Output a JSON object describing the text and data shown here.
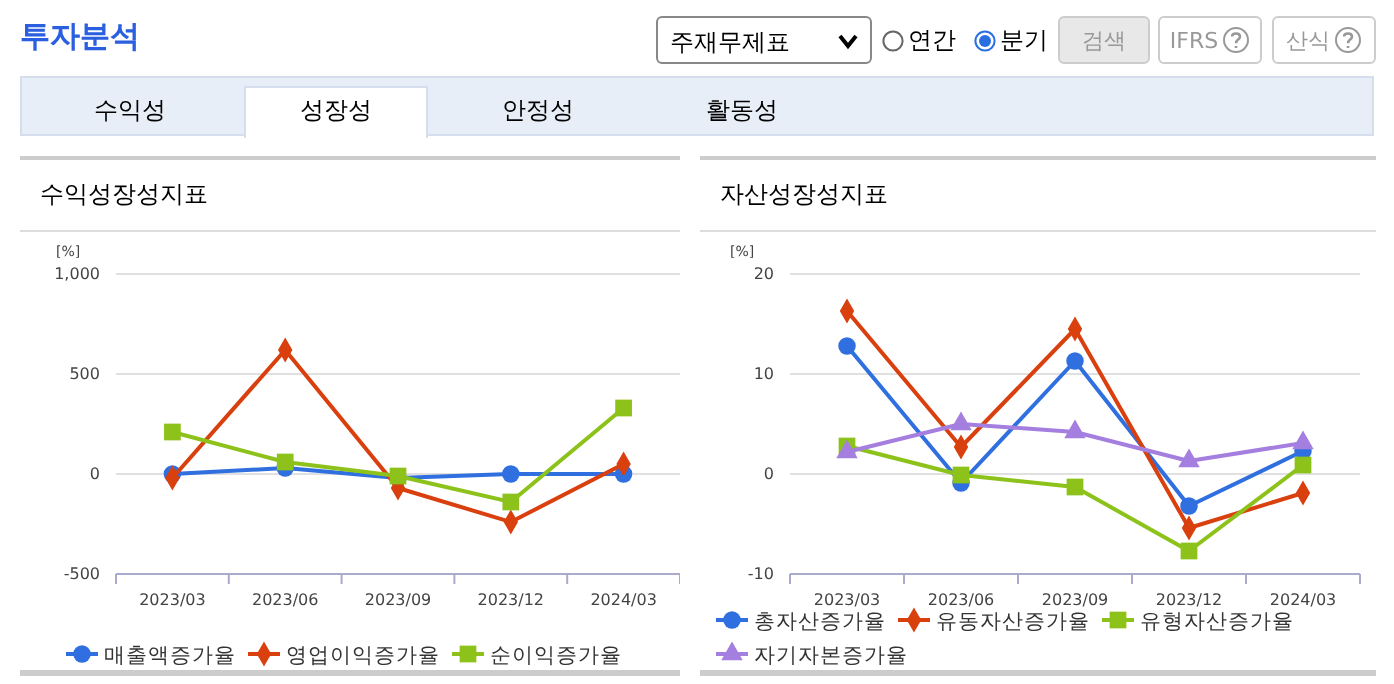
{
  "chart_data": [
    {
      "type": "other",
      "title": "투자분석",
      "annotations": [
        "주재무제표",
        "연간",
        "분기",
        "검색",
        "IFRS",
        "산식",
        "수익성",
        "성장성",
        "안정성",
        "활동성"
      ]
    },
    {
      "type": "line",
      "title": "수익성장성지표",
      "ylabel": "[%]",
      "categories": [
        "2023/03",
        "2023/06",
        "2023/09",
        "2023/12",
        "2024/03"
      ],
      "ylim": [
        -500,
        1000
      ],
      "yticks": [
        {
          "value": -500,
          "label": "-500"
        },
        0,
        500,
        {
          "value": 1000,
          "label": "1,000"
        }
      ],
      "grid": "y",
      "legend": "bottom",
      "series": [
        {
          "name": "매출액증가율",
          "color": "#2f6fdf",
          "marker": "circle",
          "values": [
            0,
            30,
            -20,
            0,
            0
          ]
        },
        {
          "name": "영업이익증가율",
          "color": "#d9400e",
          "marker": "diamond",
          "values": [
            -20,
            620,
            -70,
            -240,
            50
          ]
        },
        {
          "name": "순이익증가율",
          "color": "#8cc21a",
          "marker": "square",
          "values": [
            210,
            60,
            -10,
            -140,
            330
          ]
        }
      ]
    },
    {
      "type": "line",
      "title": "자산성장성지표",
      "ylabel": "[%]",
      "categories": [
        "2023/03",
        "2023/06",
        "2023/09",
        "2023/12",
        "2024/03"
      ],
      "ylim": [
        -10,
        20
      ],
      "yticks": [
        -10,
        0,
        10,
        20
      ],
      "grid": "y",
      "legend": "bottom",
      "series": [
        {
          "name": "총자산증가율",
          "color": "#2f6fdf",
          "marker": "circle",
          "values": [
            12.8,
            -0.9,
            11.3,
            -3.2,
            2.3
          ]
        },
        {
          "name": "유동자산증가율",
          "color": "#d9400e",
          "marker": "diamond",
          "values": [
            16.3,
            2.7,
            14.5,
            -5.4,
            -1.9
          ]
        },
        {
          "name": "유형자산증가율",
          "color": "#8cc21a",
          "marker": "square",
          "values": [
            2.8,
            -0.1,
            -1.3,
            -7.7,
            0.9
          ]
        },
        {
          "name": "자기자본증가율",
          "color": "#a57fdf",
          "marker": "triangle",
          "values": [
            2.2,
            5.0,
            4.2,
            1.3,
            3.1
          ]
        }
      ]
    }
  ]
}
